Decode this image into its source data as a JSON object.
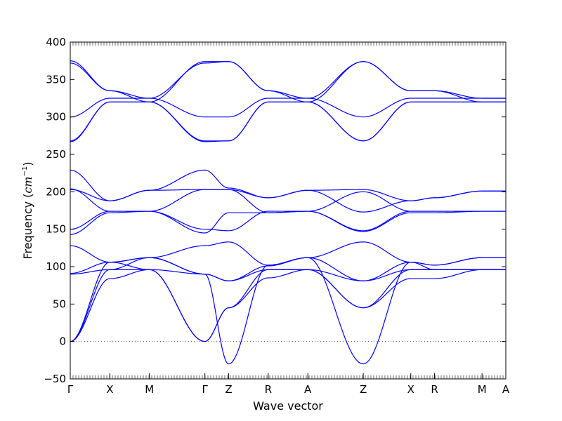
{
  "chart_data": {
    "type": "line",
    "xlabel": "Wave vector",
    "ylabel_text": "Frequency (",
    "ylabel_unit": "cm",
    "ylabel_exp": "−1",
    "ylabel_close": ")",
    "ylim": [
      -50,
      400
    ],
    "yticks": [
      -50,
      0,
      50,
      100,
      150,
      200,
      250,
      300,
      350,
      400
    ],
    "ytick_labels": [
      "−50",
      "0",
      "50",
      "100",
      "150",
      "200",
      "250",
      "300",
      "350",
      "400"
    ],
    "grid": false,
    "zero_line": "dotted",
    "xticks": [
      {
        "label": "Γ",
        "pos": 0.0
      },
      {
        "label": "X",
        "pos": 0.5
      },
      {
        "label": "M",
        "pos": 1.0
      },
      {
        "label": "Γ",
        "pos": 1.7
      },
      {
        "label": "Z",
        "pos": 2.0
      },
      {
        "label": "R",
        "pos": 2.5
      },
      {
        "label": "A",
        "pos": 3.0
      },
      {
        "label": "Z",
        "pos": 3.7
      },
      {
        "label": "X",
        "pos": 4.3
      },
      {
        "label": "R",
        "pos": 4.6
      },
      {
        "label": "M",
        "pos": 5.2
      },
      {
        "label": "A",
        "pos": 5.5
      }
    ],
    "xlim": [
      0,
      5.5
    ],
    "line_color": "#0000ff",
    "series": [
      {
        "x": [
          0,
          0.5,
          1,
          1.7,
          2,
          2.5,
          3,
          3.7,
          4.3,
          4.6,
          5.2,
          5.5
        ],
        "values": [
          0,
          84,
          96,
          0,
          45,
          85,
          96,
          45,
          84,
          84,
          96,
          96
        ]
      },
      {
        "x": [
          0,
          0.5,
          1,
          1.7,
          2,
          2.5,
          3,
          3.7,
          4.3,
          4.6,
          5.2,
          5.5
        ],
        "values": [
          0,
          96,
          96,
          0,
          45,
          96,
          96,
          45,
          96,
          96,
          96,
          96
        ]
      },
      {
        "x": [
          0,
          0.5,
          1,
          1.7,
          2,
          2.5,
          3,
          3.7,
          4.3,
          4.6,
          5.2,
          5.5
        ],
        "values": [
          0,
          106,
          112,
          90,
          81,
          101,
          112,
          81,
          106,
          102,
          112,
          112
        ]
      },
      {
        "x": [
          0,
          0.5,
          1,
          1.7,
          2,
          2.5,
          3,
          3.7,
          4.3,
          4.6,
          5.2,
          5.5
        ],
        "values": [
          90,
          96,
          112,
          128,
          133,
          102,
          112,
          133,
          106,
          96,
          96,
          96
        ]
      },
      {
        "x": [
          0,
          0.5,
          1,
          1.7,
          2,
          2.5,
          3,
          3.7,
          4.3,
          4.6,
          5.2,
          5.5
        ],
        "values": [
          91,
          106,
          96,
          90,
          81,
          96,
          96,
          81,
          96,
          96,
          96,
          96
        ]
      },
      {
        "x": [
          0,
          0.5,
          1,
          1.7,
          2,
          2.5,
          3,
          3.7,
          4.3,
          4.6,
          5.2,
          5.5
        ],
        "values": [
          128,
          106,
          112,
          90,
          -30,
          102,
          112,
          -30,
          106,
          102,
          112,
          112
        ]
      },
      {
        "x": [
          0,
          0.5,
          1,
          1.7,
          2,
          2.5,
          3,
          3.7,
          4.3,
          4.6,
          5.2,
          5.5
        ],
        "values": [
          143,
          172,
          174,
          145,
          172,
          172,
          174,
          147,
          172,
          172,
          174,
          174
        ]
      },
      {
        "x": [
          0,
          0.5,
          1,
          1.7,
          2,
          2.5,
          3,
          3.7,
          4.3,
          4.6,
          5.2,
          5.5
        ],
        "values": [
          150,
          174,
          174,
          150,
          148,
          174,
          174,
          148,
          174,
          174,
          174,
          174
        ]
      },
      {
        "x": [
          0,
          0.5,
          1,
          1.7,
          2,
          2.5,
          3,
          3.7,
          4.3,
          4.6,
          5.2,
          5.5
        ],
        "values": [
          203,
          188,
          202,
          203,
          203,
          192,
          202,
          203,
          188,
          192,
          201,
          201
        ]
      },
      {
        "x": [
          0,
          0.5,
          1,
          1.7,
          2,
          2.5,
          3,
          3.7,
          4.3,
          4.6,
          5.2,
          5.5
        ],
        "values": [
          204,
          174,
          174,
          203,
          203,
          172,
          174,
          200,
          174,
          174,
          174,
          174
        ]
      },
      {
        "x": [
          0,
          0.5,
          1,
          1.7,
          2,
          2.5,
          3,
          3.7,
          4.3,
          4.6,
          5.2,
          5.5
        ],
        "values": [
          229,
          188,
          202,
          229,
          205,
          192,
          202,
          173,
          188,
          192,
          201,
          201
        ]
      },
      {
        "x": [
          0,
          0.5,
          1,
          1.7,
          2,
          2.5,
          3,
          3.7,
          4.3,
          4.6,
          5.2,
          5.5
        ],
        "values": [
          267,
          320,
          320,
          267,
          268,
          320,
          320,
          268,
          320,
          320,
          320,
          320
        ]
      },
      {
        "x": [
          0,
          0.5,
          1,
          1.7,
          2,
          2.5,
          3,
          3.7,
          4.3,
          4.6,
          5.2,
          5.5
        ],
        "values": [
          268,
          320,
          320,
          268,
          268,
          320,
          320,
          268,
          320,
          320,
          320,
          320
        ]
      },
      {
        "x": [
          0,
          0.5,
          1,
          1.7,
          2,
          2.5,
          3,
          3.7,
          4.3,
          4.6,
          5.2,
          5.5
        ],
        "values": [
          300,
          325,
          325,
          300,
          300,
          325,
          325,
          300,
          325,
          325,
          325,
          325
        ]
      },
      {
        "x": [
          0,
          0.5,
          1,
          1.7,
          2,
          2.5,
          3,
          3.7,
          4.3,
          4.6,
          5.2,
          5.5
        ],
        "values": [
          372,
          335,
          325,
          372,
          374,
          335,
          325,
          374,
          335,
          335,
          325,
          325
        ]
      },
      {
        "x": [
          0,
          0.5,
          1,
          1.7,
          2,
          2.5,
          3,
          3.7,
          4.3,
          4.6,
          5.2,
          5.5
        ],
        "values": [
          375,
          335,
          320,
          374,
          374,
          335,
          320,
          374,
          335,
          335,
          320,
          320
        ]
      }
    ]
  }
}
